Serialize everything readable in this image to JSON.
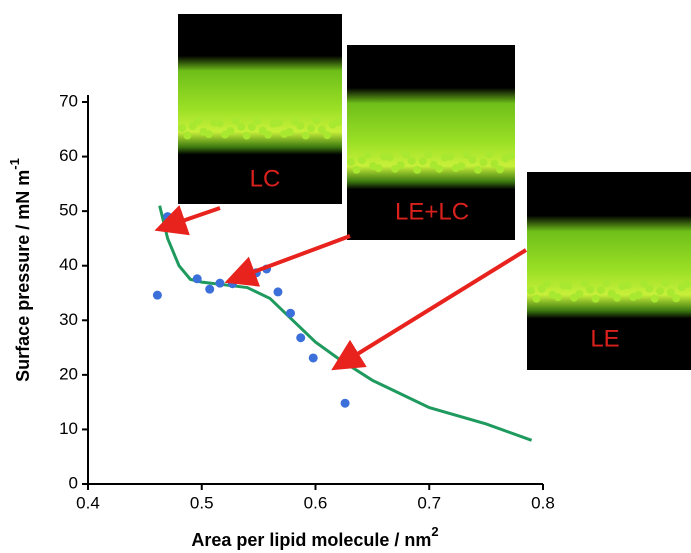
{
  "chart_data": {
    "type": "line",
    "x_label": "Area per lipid molecule / nm",
    "x_label_sup": "2",
    "y_label": "Surface pressure / mN m",
    "y_label_sup": "-1",
    "xlim": [
      0.4,
      0.8
    ],
    "ylim": [
      0,
      70
    ],
    "xticks": [
      0.4,
      0.5,
      0.6,
      0.7,
      0.8
    ],
    "yticks": [
      0,
      10,
      20,
      30,
      40,
      50,
      60,
      70
    ],
    "series": [
      {
        "type": "line",
        "color": "#1f9a5e",
        "x": [
          0.463,
          0.47,
          0.48,
          0.49,
          0.5,
          0.52,
          0.54,
          0.56,
          0.58,
          0.6,
          0.62,
          0.65,
          0.7,
          0.75,
          0.79
        ],
        "values": [
          51,
          45,
          40,
          37.5,
          37,
          36.5,
          36,
          34,
          30,
          26,
          23,
          19,
          14,
          11,
          8
        ]
      },
      {
        "type": "scatter",
        "color": "#3b6fd9",
        "x": [
          0.461,
          0.47,
          0.496,
          0.507,
          0.516,
          0.527,
          0.537,
          0.548,
          0.557,
          0.567,
          0.578,
          0.587,
          0.598,
          0.626
        ],
        "values": [
          34.6,
          49,
          37.6,
          35.7,
          36.8,
          36.7,
          37.4,
          38.7,
          39.4,
          35.2,
          31.3,
          26.8,
          23.1,
          14.8
        ]
      }
    ],
    "insets": [
      {
        "label": "LC"
      },
      {
        "label": "LE+LC"
      },
      {
        "label": "LE"
      }
    ]
  }
}
